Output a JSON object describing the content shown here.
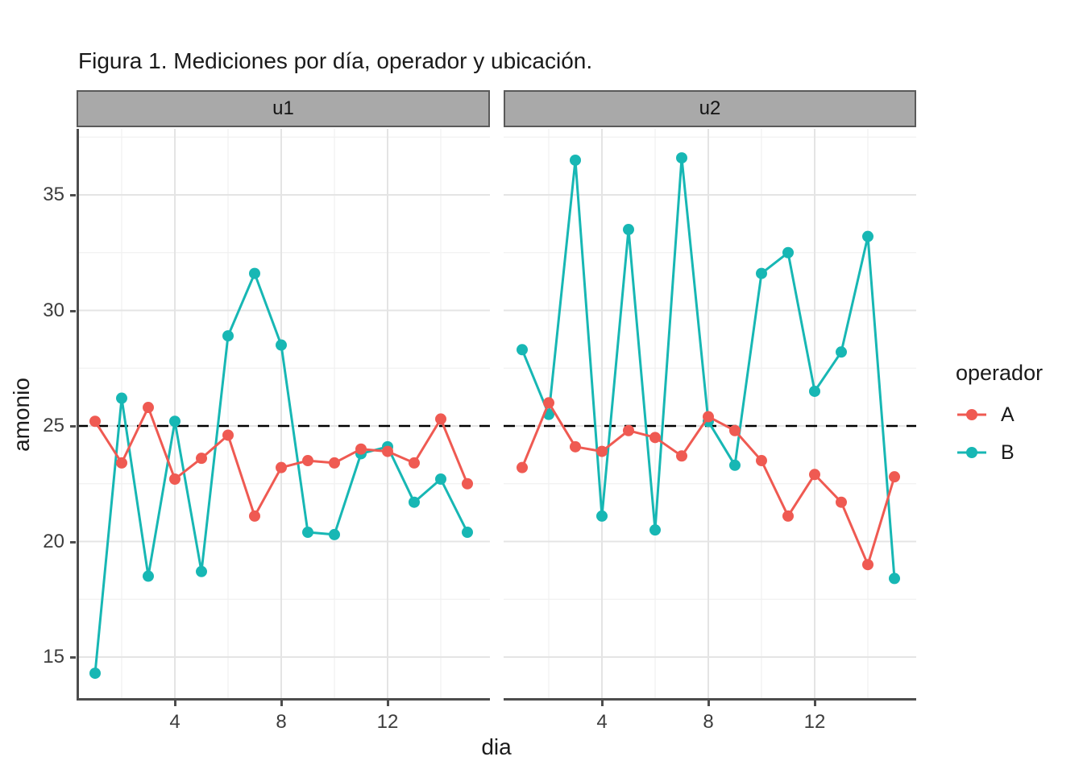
{
  "title": "Figura 1. Mediciones por día, operador y ubicación.",
  "colors": {
    "operator_A": "#EF5A52",
    "operator_B": "#17B7B4",
    "strip_fill": "#A9A9A9",
    "strip_border": "#5A5A5A",
    "axis_line": "#4D4D4D",
    "grid_major": "#E4E4E4",
    "grid_minor": "#F0F0F0",
    "reference_line": "#000000",
    "tick_text": "#3D3D3D",
    "text": "#1A1A1A"
  },
  "chart_data": {
    "type": "line",
    "title": "Figura 1. Mediciones por día, operador y ubicación.",
    "xlabel": "dia",
    "ylabel": "amonio",
    "grid": true,
    "x_ticks": [
      4,
      8,
      12
    ],
    "x_minor_ticks": [
      2,
      6,
      10,
      14
    ],
    "y_ticks": [
      15,
      20,
      25,
      30,
      35
    ],
    "y_minor_ticks": [
      17.5,
      22.5,
      27.5,
      32.5,
      37.5
    ],
    "xlim": [
      0.3,
      15.7
    ],
    "ylim": [
      13.1,
      37.9
    ],
    "reference_line_y": 25,
    "reference_line_style": "dashed",
    "x": [
      1,
      2,
      3,
      4,
      5,
      6,
      7,
      8,
      9,
      10,
      11,
      12,
      13,
      14,
      15
    ],
    "facets": [
      {
        "label": "u1",
        "series": [
          {
            "name": "A",
            "values": [
              25.2,
              23.4,
              25.8,
              22.7,
              23.6,
              24.6,
              21.1,
              23.2,
              23.5,
              23.4,
              24.0,
              23.9,
              23.4,
              25.3,
              22.5
            ]
          },
          {
            "name": "B",
            "values": [
              14.3,
              26.2,
              18.5,
              25.2,
              18.7,
              28.9,
              31.6,
              28.5,
              20.4,
              20.3,
              23.8,
              24.1,
              21.7,
              22.7,
              20.4
            ]
          }
        ]
      },
      {
        "label": "u2",
        "series": [
          {
            "name": "A",
            "values": [
              23.2,
              26.0,
              24.1,
              23.9,
              24.8,
              24.5,
              23.7,
              25.4,
              24.8,
              23.5,
              21.1,
              22.9,
              21.7,
              19.0,
              22.8
            ]
          },
          {
            "name": "B",
            "values": [
              28.3,
              25.5,
              36.5,
              21.1,
              33.5,
              20.5,
              36.6,
              25.2,
              23.3,
              31.6,
              32.5,
              26.5,
              28.2,
              33.2,
              18.4
            ]
          }
        ]
      }
    ],
    "legend": {
      "title": "operador",
      "entries": [
        "A",
        "B"
      ],
      "position": "right"
    }
  }
}
